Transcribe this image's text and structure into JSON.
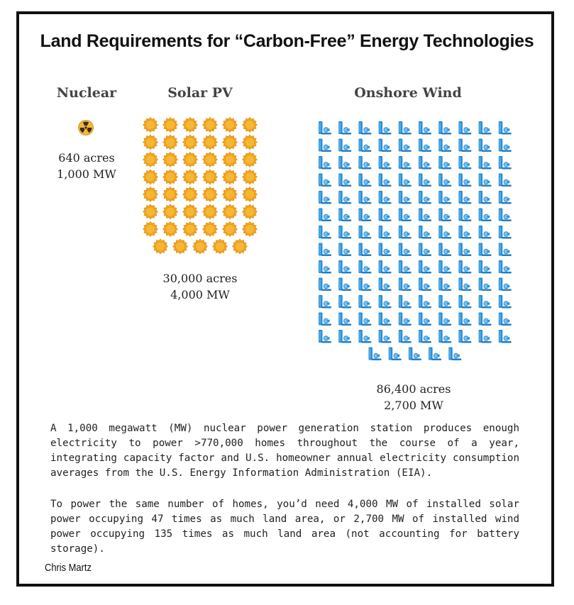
{
  "chart_data": {
    "type": "pictogram",
    "title": "Land Requirements for “Carbon-Free” Energy Technologies",
    "unit": "one icon ≈ 640 acres",
    "series": [
      {
        "name": "Nuclear",
        "icon": "radiation-icon",
        "icon_count": 1,
        "acres": 640,
        "acres_label": "640 acres",
        "capacity_mw": 1000,
        "capacity_label": "1,000 MW"
      },
      {
        "name": "Solar PV",
        "icon": "sun-icon",
        "icon_count": 47,
        "acres": 30000,
        "acres_label": "30,000 acres",
        "capacity_mw": 4000,
        "capacity_label": "4,000 MW"
      },
      {
        "name": "Onshore Wind",
        "icon": "wind-turbine-icon",
        "icon_count": 135,
        "acres": 86400,
        "acres_label": "86,400 acres",
        "capacity_mw": 2700,
        "capacity_label": "2,700 MW"
      }
    ]
  },
  "text": {
    "paragraph1": "A 1,000 megawatt (MW) nuclear power generation station produces enough electricity to power >770,000 homes throughout the course of a year, integrating capacity factor and U.S. homeowner annual electricity consumption averages from the U.S. Energy Information Administration (EIA).",
    "paragraph2": "To power the same number of homes, you’d need 4,000 MW of installed solar power occupying 47 times as much land area, or 2,700 MW of installed wind power occupying 135 times as much land area (not accounting for battery storage).",
    "author": "Chris Martz"
  },
  "colors": {
    "sun": "#f2a422",
    "sun_center": "#f7b733",
    "nuclear_bg": "#f4b63b",
    "nuclear_symbol": "#3a2a12",
    "wind_tower": "#2a8fd6",
    "wind_blade": "#7fc4f0",
    "frame": "#111111"
  }
}
